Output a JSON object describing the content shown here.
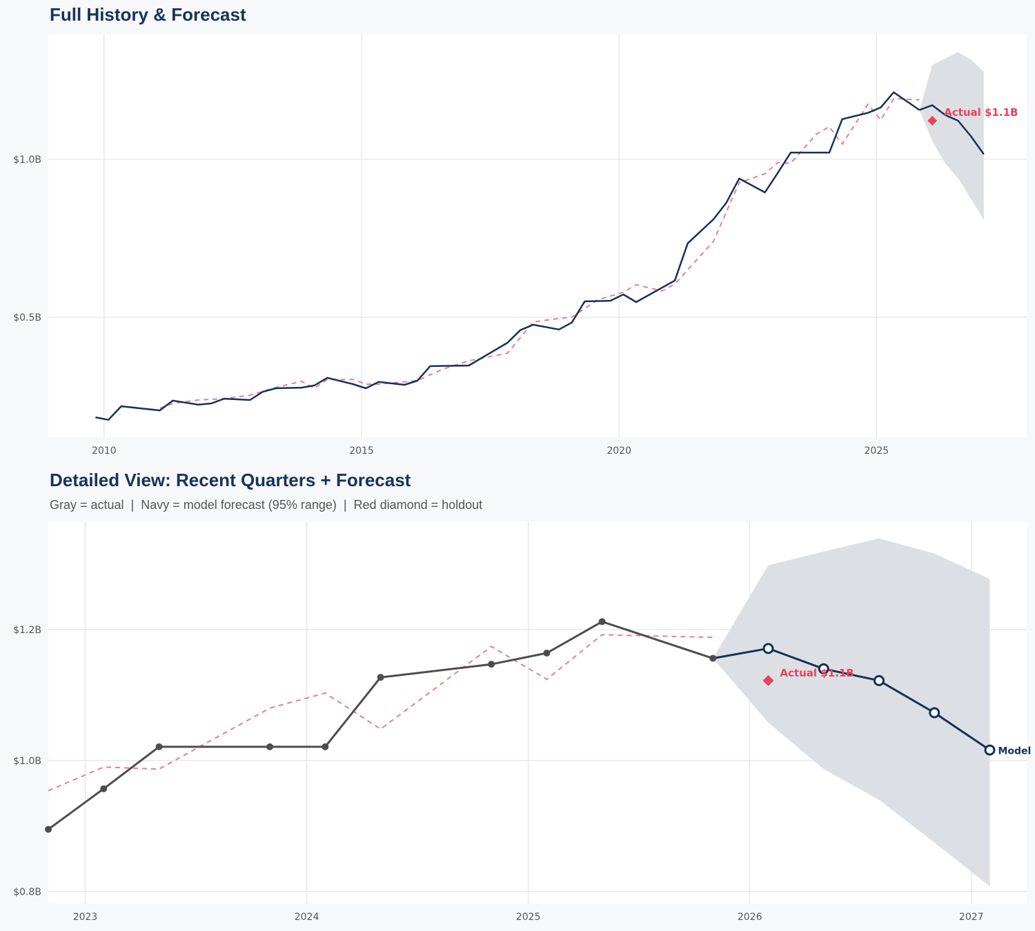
{
  "colors": {
    "navy": "#13325b",
    "gray": "#4d4d4d",
    "fitted": "#f07a8c",
    "holdout": "#e8435a",
    "band": "#dadee3",
    "grid": "#e4e4e4"
  },
  "chart_data": [
    {
      "type": "line",
      "title": "Full History & Forecast",
      "xlim": [
        "2008-12",
        "2027-12"
      ],
      "ylim": [
        0.12,
        1.395
      ],
      "x_ticks": [
        "2010",
        "2015",
        "2020",
        "2025"
      ],
      "y_ticks": [
        {
          "value": 0.5,
          "label": "$0.5B"
        },
        {
          "value": 1.0,
          "label": "$1.0B"
        }
      ],
      "grid": true,
      "actual_style": "navy",
      "show_markers": false,
      "holdout_label": "Actual $1.1B",
      "model_label": ""
    },
    {
      "type": "line",
      "title": "Detailed View: Recent Quarters + Forecast",
      "subtitle": "Gray = actual  |  Navy = model forecast (95% range)  |  Red diamond = holdout",
      "xlim": [
        "2022-11",
        "2027-04"
      ],
      "ylim": [
        0.782,
        1.365
      ],
      "x_ticks": [
        "2023",
        "2024",
        "2025",
        "2026",
        "2027"
      ],
      "y_ticks": [
        {
          "value": 0.8,
          "label": "$0.8B"
        },
        {
          "value": 1.0,
          "label": "$1.0B"
        },
        {
          "value": 1.2,
          "label": "$1.2B"
        }
      ],
      "grid": true,
      "actual_style": "gray",
      "show_markers": true,
      "holdout_label": "Actual $1.1B",
      "model_label": "Model"
    }
  ],
  "series": {
    "actual": [
      [
        "2009-11",
        0.183
      ],
      [
        "2010-02",
        0.175
      ],
      [
        "2010-05",
        0.218
      ],
      [
        "2011-02",
        0.205
      ],
      [
        "2011-05",
        0.236
      ],
      [
        "2011-11",
        0.223
      ],
      [
        "2012-02",
        0.227
      ],
      [
        "2012-05",
        0.242
      ],
      [
        "2012-11",
        0.238
      ],
      [
        "2013-02",
        0.264
      ],
      [
        "2013-05",
        0.275
      ],
      [
        "2013-11",
        0.277
      ],
      [
        "2014-02",
        0.284
      ],
      [
        "2014-05",
        0.308
      ],
      [
        "2014-11",
        0.288
      ],
      [
        "2015-02",
        0.275
      ],
      [
        "2015-05",
        0.295
      ],
      [
        "2015-11",
        0.286
      ],
      [
        "2016-02",
        0.299
      ],
      [
        "2016-05",
        0.345
      ],
      [
        "2017-02",
        0.347
      ],
      [
        "2017-11",
        0.419
      ],
      [
        "2018-02",
        0.459
      ],
      [
        "2018-05",
        0.476
      ],
      [
        "2018-11",
        0.461
      ],
      [
        "2019-02",
        0.483
      ],
      [
        "2019-05",
        0.55
      ],
      [
        "2019-11",
        0.552
      ],
      [
        "2020-02",
        0.572
      ],
      [
        "2020-05",
        0.548
      ],
      [
        "2021-02",
        0.616
      ],
      [
        "2021-05",
        0.734
      ],
      [
        "2021-11",
        0.81
      ],
      [
        "2022-02",
        0.862
      ],
      [
        "2022-05",
        0.939
      ],
      [
        "2022-11",
        0.895
      ],
      [
        "2023-02",
        0.957
      ],
      [
        "2023-05",
        1.021
      ],
      [
        "2023-11",
        1.021
      ],
      [
        "2024-02",
        1.021
      ],
      [
        "2024-05",
        1.127
      ],
      [
        "2024-11",
        1.147
      ],
      [
        "2025-02",
        1.164
      ],
      [
        "2025-05",
        1.212
      ],
      [
        "2025-11",
        1.156
      ]
    ],
    "fitted": [
      [
        "2011-02",
        0.212
      ],
      [
        "2011-05",
        0.227
      ],
      [
        "2011-11",
        0.238
      ],
      [
        "2012-05",
        0.242
      ],
      [
        "2012-11",
        0.253
      ],
      [
        "2013-05",
        0.277
      ],
      [
        "2013-11",
        0.297
      ],
      [
        "2014-02",
        0.275
      ],
      [
        "2014-05",
        0.303
      ],
      [
        "2014-11",
        0.303
      ],
      [
        "2015-02",
        0.288
      ],
      [
        "2015-05",
        0.288
      ],
      [
        "2016-02",
        0.299
      ],
      [
        "2016-08",
        0.336
      ],
      [
        "2017-02",
        0.362
      ],
      [
        "2017-11",
        0.386
      ],
      [
        "2018-05",
        0.485
      ],
      [
        "2018-11",
        0.496
      ],
      [
        "2019-02",
        0.5
      ],
      [
        "2019-08",
        0.555
      ],
      [
        "2020-02",
        0.579
      ],
      [
        "2020-05",
        0.603
      ],
      [
        "2020-11",
        0.583
      ],
      [
        "2021-02",
        0.605
      ],
      [
        "2021-11",
        0.74
      ],
      [
        "2022-05",
        0.926
      ],
      [
        "2022-11",
        0.954
      ],
      [
        "2023-02",
        0.99
      ],
      [
        "2023-05",
        0.987
      ],
      [
        "2023-11",
        1.08
      ],
      [
        "2024-02",
        1.103
      ],
      [
        "2024-05",
        1.048
      ],
      [
        "2024-11",
        1.174
      ],
      [
        "2025-02",
        1.124
      ],
      [
        "2025-05",
        1.192
      ],
      [
        "2025-11",
        1.188
      ]
    ],
    "forecast": [
      [
        "2025-11",
        1.156
      ],
      [
        "2026-02",
        1.171
      ],
      [
        "2026-05",
        1.14
      ],
      [
        "2026-08",
        1.122
      ],
      [
        "2026-11",
        1.073
      ],
      [
        "2027-02",
        1.016
      ]
    ],
    "forecast_lower": [
      [
        "2025-11",
        1.156
      ],
      [
        "2026-02",
        1.058
      ],
      [
        "2026-05",
        0.987
      ],
      [
        "2026-08",
        0.94
      ],
      [
        "2026-11",
        0.875
      ],
      [
        "2027-02",
        0.808
      ]
    ],
    "forecast_upper": [
      [
        "2025-11",
        1.156
      ],
      [
        "2026-02",
        1.298
      ],
      [
        "2026-05",
        1.319
      ],
      [
        "2026-08",
        1.339
      ],
      [
        "2026-11",
        1.316
      ],
      [
        "2027-02",
        1.277
      ]
    ],
    "holdout": [
      "2026-02",
      1.122
    ]
  }
}
